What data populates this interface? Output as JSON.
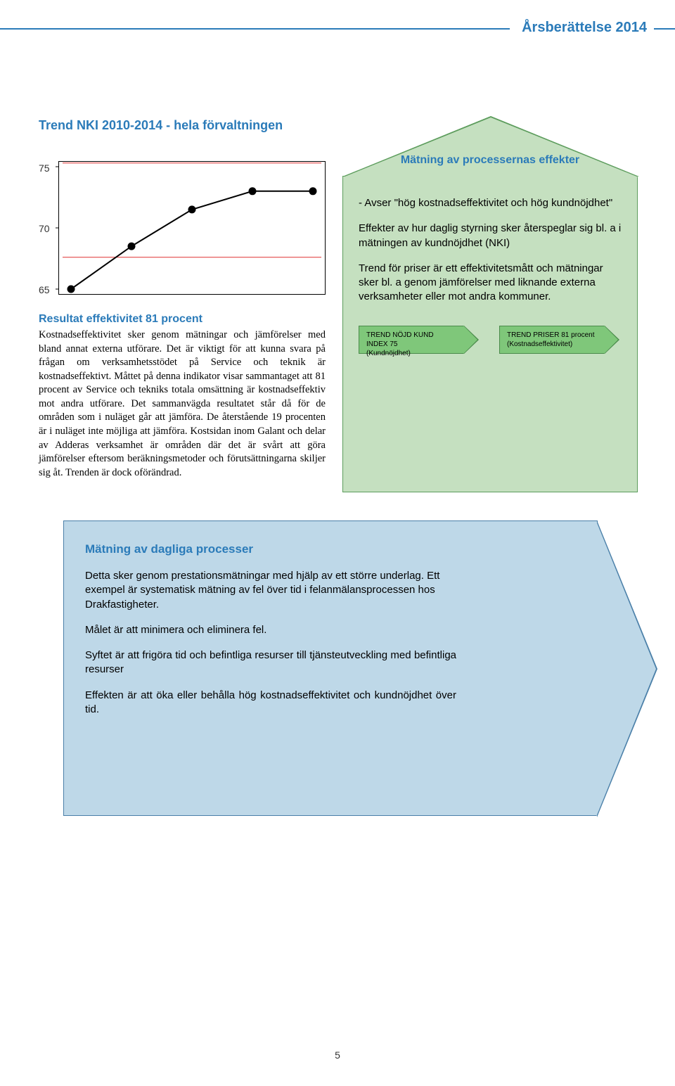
{
  "header": {
    "title": "Årsberättelse 2014"
  },
  "chart": {
    "title": "Trend NKI 2010-2014  - hela förvaltningen",
    "type": "line",
    "ylim": [
      65,
      75
    ],
    "yticks": [
      65,
      70,
      75
    ],
    "xcount": 5,
    "values": [
      65,
      68.5,
      71.5,
      73,
      73
    ],
    "line_color": "#000000",
    "marker_color": "#000000",
    "marker_radius": 5.5,
    "line_width": 2,
    "ref_lines": [
      {
        "y": 75.3,
        "color": "#e03030",
        "width": 1
      },
      {
        "y": 67.6,
        "color": "#e03030",
        "width": 1
      }
    ],
    "border_color": "#000000",
    "background": "#ffffff"
  },
  "left": {
    "heading": "Resultat effektivitet 81 procent",
    "body": "Kostnadseffektivitet sker genom mätningar och jämförelser med bland annat externa utförare. Det är viktigt för att kunna svara på frågan om verksamhetsstödet på Service och teknik är kostnadseffektivt. Måttet på denna indikator visar sammantaget att 81 procent av Service och tekniks totala omsättning är kostnadseffektiv mot andra utförare. Det sammanvägda resultatet står då för de områden som i nuläget går att jämföra. De återstående 19 procenten är i nuläget inte möjliga att jämföra. Kostsidan inom Galant och delar av Adderas verksamhet är områden där det är svårt att göra jämförelser eftersom beräkningsmetoder och förutsättningarna skiljer sig åt. Trenden är dock oförändrad."
  },
  "green": {
    "title": "Mätning av processernas effekter",
    "para1": "- Avser \"hög kostnadseffektivitet och hög kundnöjdhet\"",
    "para2": "Effekter av hur daglig styrning sker återspeglar sig bl. a i mätningen av kundnöjdhet (NKI)",
    "para3": "Trend för priser är ett effektivitetsmått och mätningar sker bl. a genom jämförelser med liknande externa verksamheter eller mot andra kommuner.",
    "pill1_line1": "TREND NÖJD KUND INDEX 75",
    "pill1_line2": "(Kundnöjdhet)",
    "pill2_line1": "TREND PRISER 81 procent",
    "pill2_line2": "(Kostnadseffektivitet)",
    "bg": "#c5e0c0",
    "border": "#5c9c5c",
    "pill_bg": "#7fc77a",
    "pill_border": "#4a8a4a"
  },
  "blue": {
    "heading": "Mätning av dagliga processer",
    "para1": "Detta sker genom prestationsmätningar med hjälp av ett större underlag. Ett exempel är systematisk mätning av fel över tid i felanmälansprocessen hos Drakfastigheter.",
    "para2": "Målet är att minimera och eliminera fel.",
    "para3": "Syftet är att frigöra tid och befintliga resurser till tjänsteutveckling med befintliga resurser",
    "para4": "Effekten är att öka eller behålla hög kostnadseffektivitet och kundnöjdhet över tid.",
    "bg": "#bed8e8",
    "border": "#4a7fa8"
  },
  "page_number": "5"
}
